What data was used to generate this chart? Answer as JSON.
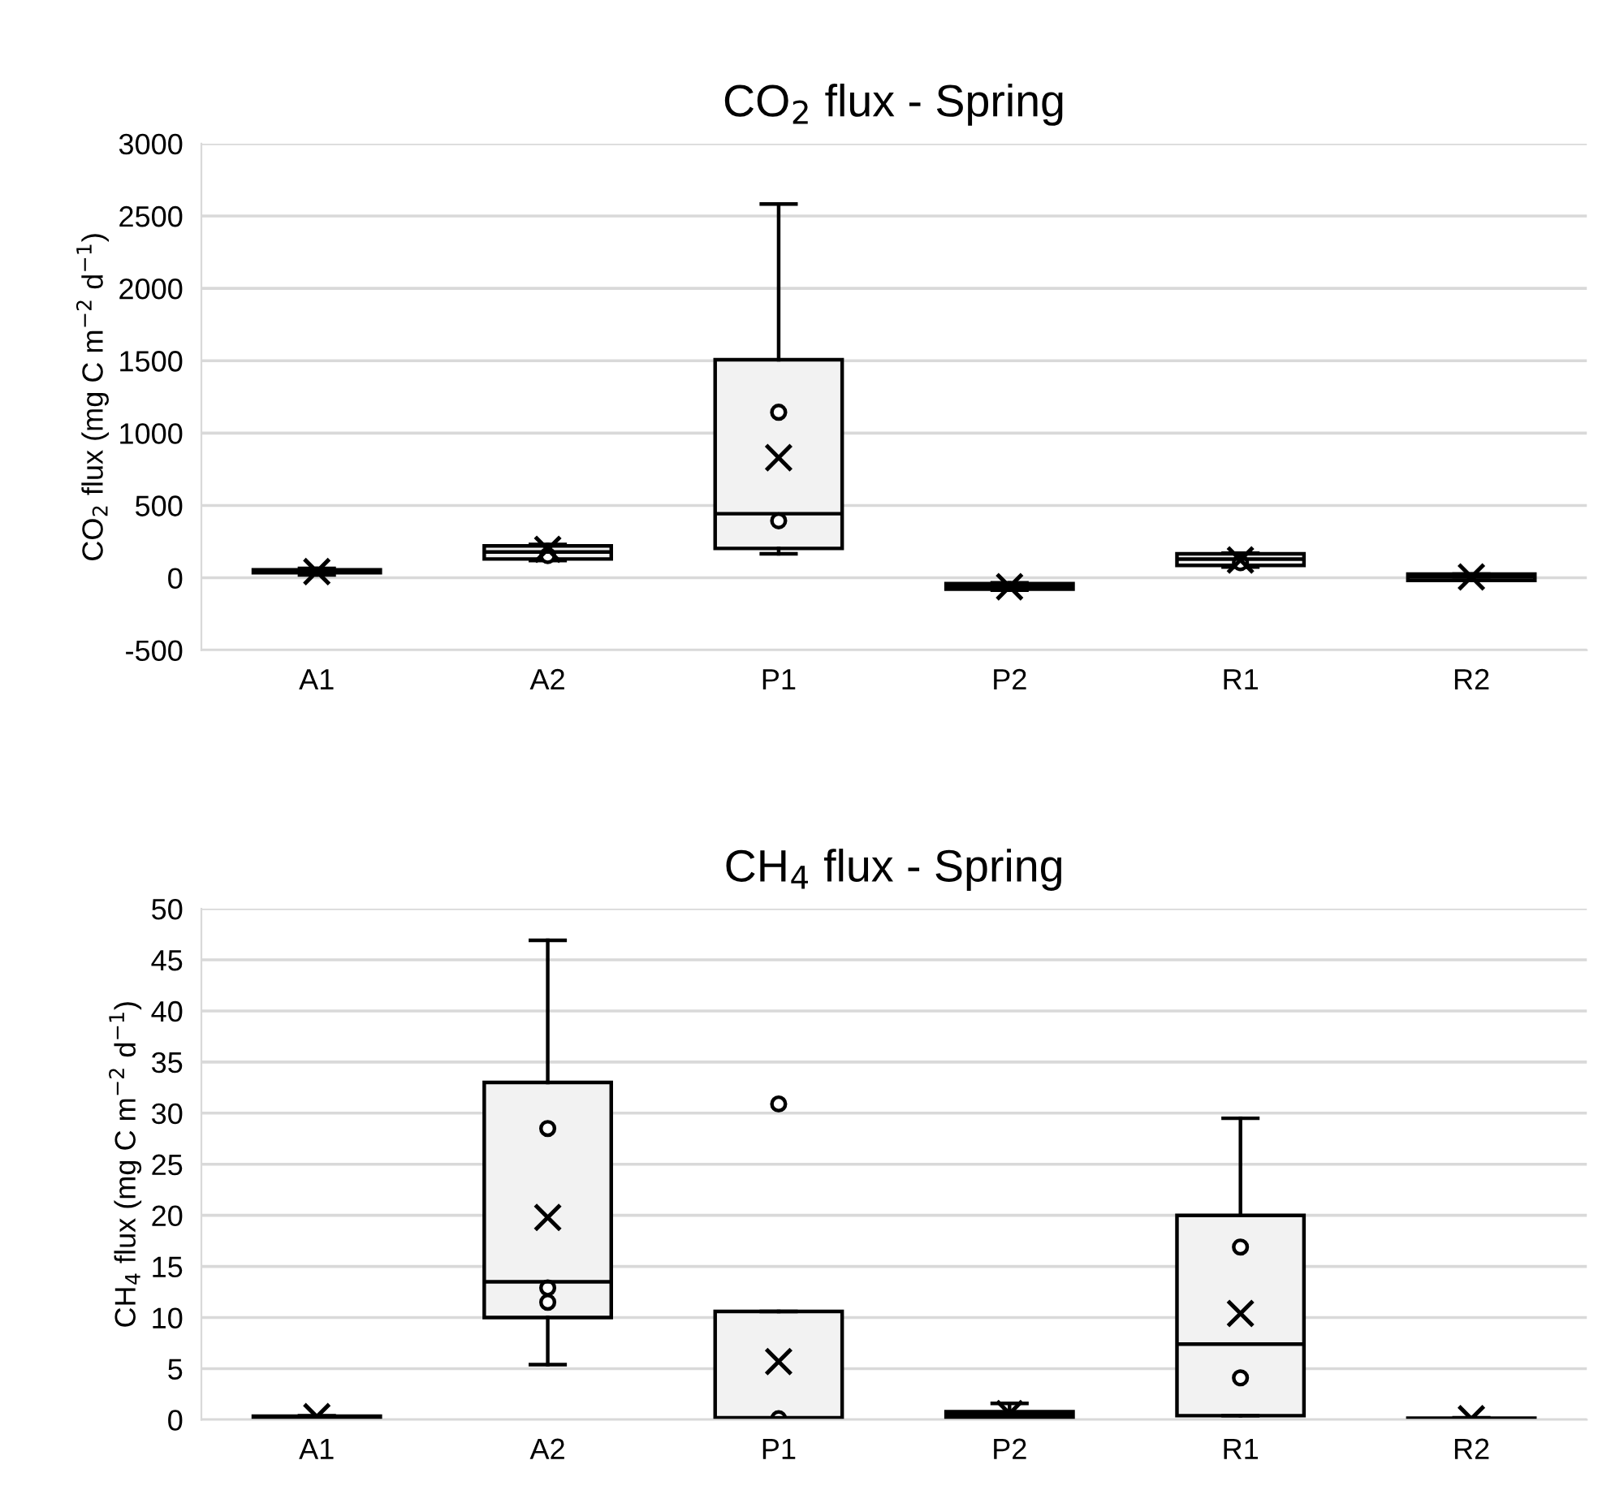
{
  "chart_data": [
    {
      "type": "box",
      "title": "CO$_{2}$ flux - Spring",
      "ylabel": "CO$_{2}$ flux (mg C m$^{−2}$ d$^{−1}$)",
      "categories": [
        "A1",
        "A2",
        "P1",
        "P2",
        "R1",
        "R2"
      ],
      "color": "#f2f2f2",
      "ylim": [
        -500,
        3000
      ],
      "yticks": [
        -500,
        0,
        500,
        1000,
        1500,
        2000,
        2500,
        3000
      ],
      "grid": "y",
      "legend": false,
      "boxes": [
        {
          "low": 20,
          "q1": 35,
          "median": 45,
          "q3": 55,
          "high": 65,
          "mean": 43
        },
        {
          "low": 120,
          "q1": 130,
          "median": 178,
          "q3": 220,
          "high": 230,
          "mean": 197,
          "outliers": [
            154
          ]
        },
        {
          "low": 166,
          "q1": 203,
          "median": 443,
          "q3": 1507,
          "high": 2583,
          "mean": 830,
          "outliers": [
            1144,
            394
          ]
        },
        {
          "low": -85,
          "q1": -78,
          "median": -60,
          "q3": -40,
          "high": -35,
          "mean": -62
        },
        {
          "low": 75,
          "q1": 86,
          "median": 129,
          "q3": 166,
          "high": 170,
          "mean": 123,
          "outliers": [
            105
          ]
        },
        {
          "low": -18,
          "q1": -18,
          "median": 6,
          "q3": 25,
          "high": 25,
          "mean": 6
        }
      ]
    },
    {
      "type": "box",
      "title": "CH$_{4}$ flux - Spring",
      "ylabel": "CH$_{4}$ flux (mg C m$^{−2}$ d$^{−1}$)",
      "categories": [
        "A1",
        "A2",
        "P1",
        "P2",
        "R1",
        "R2"
      ],
      "color": "#f2f2f2",
      "ylim": [
        0,
        50
      ],
      "yticks": [
        0,
        5,
        10,
        15,
        20,
        25,
        30,
        35,
        40,
        45,
        50
      ],
      "grid": "y",
      "legend": false,
      "boxes": [
        {
          "low": 0,
          "q1": 0.1,
          "median": 0.2,
          "q3": 0.35,
          "high": 0.4,
          "mean": 0.3
        },
        {
          "low": 5.4,
          "q1": 10.0,
          "median": 13.5,
          "q3": 33.0,
          "high": 46.9,
          "mean": 19.8,
          "outliers": [
            28.5,
            12.9,
            11.5
          ]
        },
        {
          "low": 0,
          "q1": 0.1,
          "median": 0.2,
          "q3": 10.6,
          "high": 10.6,
          "mean": 5.7,
          "outliers": [
            30.9,
            0.1
          ]
        },
        {
          "low": 0.1,
          "q1": 0.2,
          "median": 0.5,
          "q3": 0.8,
          "high": 1.6,
          "mean": 0.6
        },
        {
          "low": 0.4,
          "q1": 0.4,
          "median": 7.4,
          "q3": 20.0,
          "high": 29.5,
          "mean": 10.4,
          "outliers": [
            16.9,
            4.1
          ]
        },
        {
          "low": 0,
          "q1": 0.05,
          "median": 0.1,
          "q3": 0.15,
          "high": 0.2,
          "mean": 0.1
        }
      ]
    }
  ]
}
